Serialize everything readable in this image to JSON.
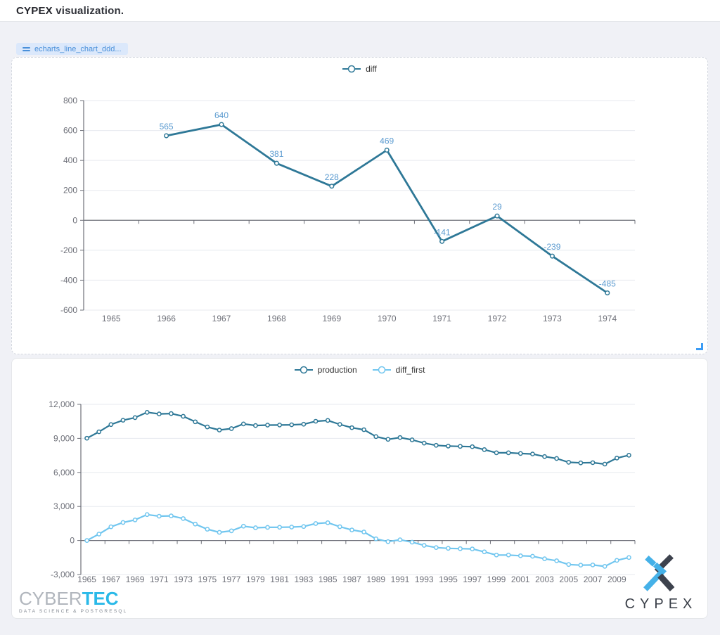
{
  "header": {
    "brand": "CYPEX",
    "title_rest": "visualization."
  },
  "toolbar_chip": {
    "label": "echarts_line_chart_ddd...",
    "icon": "drag-handle-icon"
  },
  "colors": {
    "accent_blue": "#4a90da",
    "series_dark": "#2e7897",
    "series_light": "#71c6ef",
    "point_label_blue": "#5b9bd0",
    "axis_text": "#6e7079",
    "resize_handle_blue": "#3b9cf5",
    "cybertec_cyan": "#2ab9e8",
    "logo_dark": "#3d424d"
  },
  "chart_data": [
    {
      "type": "line",
      "title": "",
      "legend": [
        "diff"
      ],
      "legend_position": "top-center",
      "grid": true,
      "label_color": "#5b9bd0",
      "ylim": [
        -600,
        800
      ],
      "y_ticks": [
        800,
        600,
        400,
        200,
        0,
        -200,
        -400,
        -600
      ],
      "thousands_separator": false,
      "categories": [
        1965,
        1966,
        1967,
        1968,
        1969,
        1970,
        1971,
        1972,
        1973,
        1974
      ],
      "x_tick_labels": [
        "1965",
        "1966",
        "1967",
        "1968",
        "1969",
        "1970",
        "1971",
        "1972",
        "1973",
        "1974"
      ],
      "x_label_interval": 1,
      "series": [
        {
          "name": "diff",
          "color": "#2e7897",
          "show_point_labels": true,
          "values": [
            null,
            565,
            640,
            381,
            228,
            469,
            -141,
            29,
            -239,
            -485
          ]
        }
      ]
    },
    {
      "type": "line",
      "title": "",
      "legend": [
        "production",
        "diff_first"
      ],
      "legend_position": "top-center",
      "grid": true,
      "label_color": "#5b9bd0",
      "ylim": [
        -3000,
        12000
      ],
      "y_ticks": [
        12000,
        9000,
        6000,
        3000,
        0,
        -3000
      ],
      "thousands_separator": true,
      "categories": [
        1965,
        1966,
        1967,
        1968,
        1969,
        1970,
        1971,
        1972,
        1973,
        1974,
        1975,
        1976,
        1977,
        1978,
        1979,
        1980,
        1981,
        1982,
        1983,
        1984,
        1985,
        1986,
        1987,
        1988,
        1989,
        1990,
        1991,
        1992,
        1993,
        1994,
        1995,
        1996,
        1997,
        1998,
        1999,
        2000,
        2001,
        2002,
        2003,
        2004,
        2005,
        2006,
        2007,
        2008,
        2009,
        2010
      ],
      "x_tick_labels": [
        "1965",
        "1967",
        "1969",
        "1971",
        "1973",
        "1975",
        "1977",
        "1979",
        "1981",
        "1983",
        "1985",
        "1987",
        "1989",
        "1991",
        "1993",
        "1995",
        "1997",
        "1999",
        "2001",
        "2003",
        "2005",
        "2007",
        "2009"
      ],
      "x_label_interval": 2,
      "series": [
        {
          "name": "production",
          "color": "#2e7897",
          "show_point_labels": false,
          "values": [
            9014,
            9579,
            10219,
            10600,
            10828,
            11297,
            11156,
            11185,
            10946,
            10461,
            10007,
            9735,
            9863,
            10274,
            10135,
            10170,
            10180,
            10199,
            10247,
            10509,
            10580,
            10231,
            9944,
            9765,
            9159,
            8914,
            9076,
            8868,
            8583,
            8389,
            8322,
            8295,
            8269,
            8011,
            7731,
            7733,
            7669,
            7626,
            7400,
            7228,
            6895,
            6841,
            6860,
            6734,
            7263,
            7513
          ]
        },
        {
          "name": "diff_first",
          "color": "#71c6ef",
          "show_point_labels": false,
          "values": [
            0,
            565,
            1205,
            1586,
            1814,
            2283,
            2142,
            2171,
            1932,
            1447,
            993,
            721,
            849,
            1260,
            1121,
            1156,
            1166,
            1185,
            1233,
            1495,
            1566,
            1217,
            930,
            751,
            145,
            -100,
            62,
            -146,
            -431,
            -625,
            -692,
            -719,
            -745,
            -1003,
            -1283,
            -1281,
            -1345,
            -1388,
            -1614,
            -1786,
            -2119,
            -2173,
            -2154,
            -2280,
            -1751,
            -1501
          ]
        }
      ]
    }
  ],
  "logos": {
    "cybertec": {
      "name_part1": "CYBER",
      "name_part2": "TEC",
      "tagline": "DATA SCIENCE & POSTGRESQL"
    },
    "cypex": {
      "icon": "cypex-x-icon",
      "wordmark": "CYPEX"
    }
  }
}
